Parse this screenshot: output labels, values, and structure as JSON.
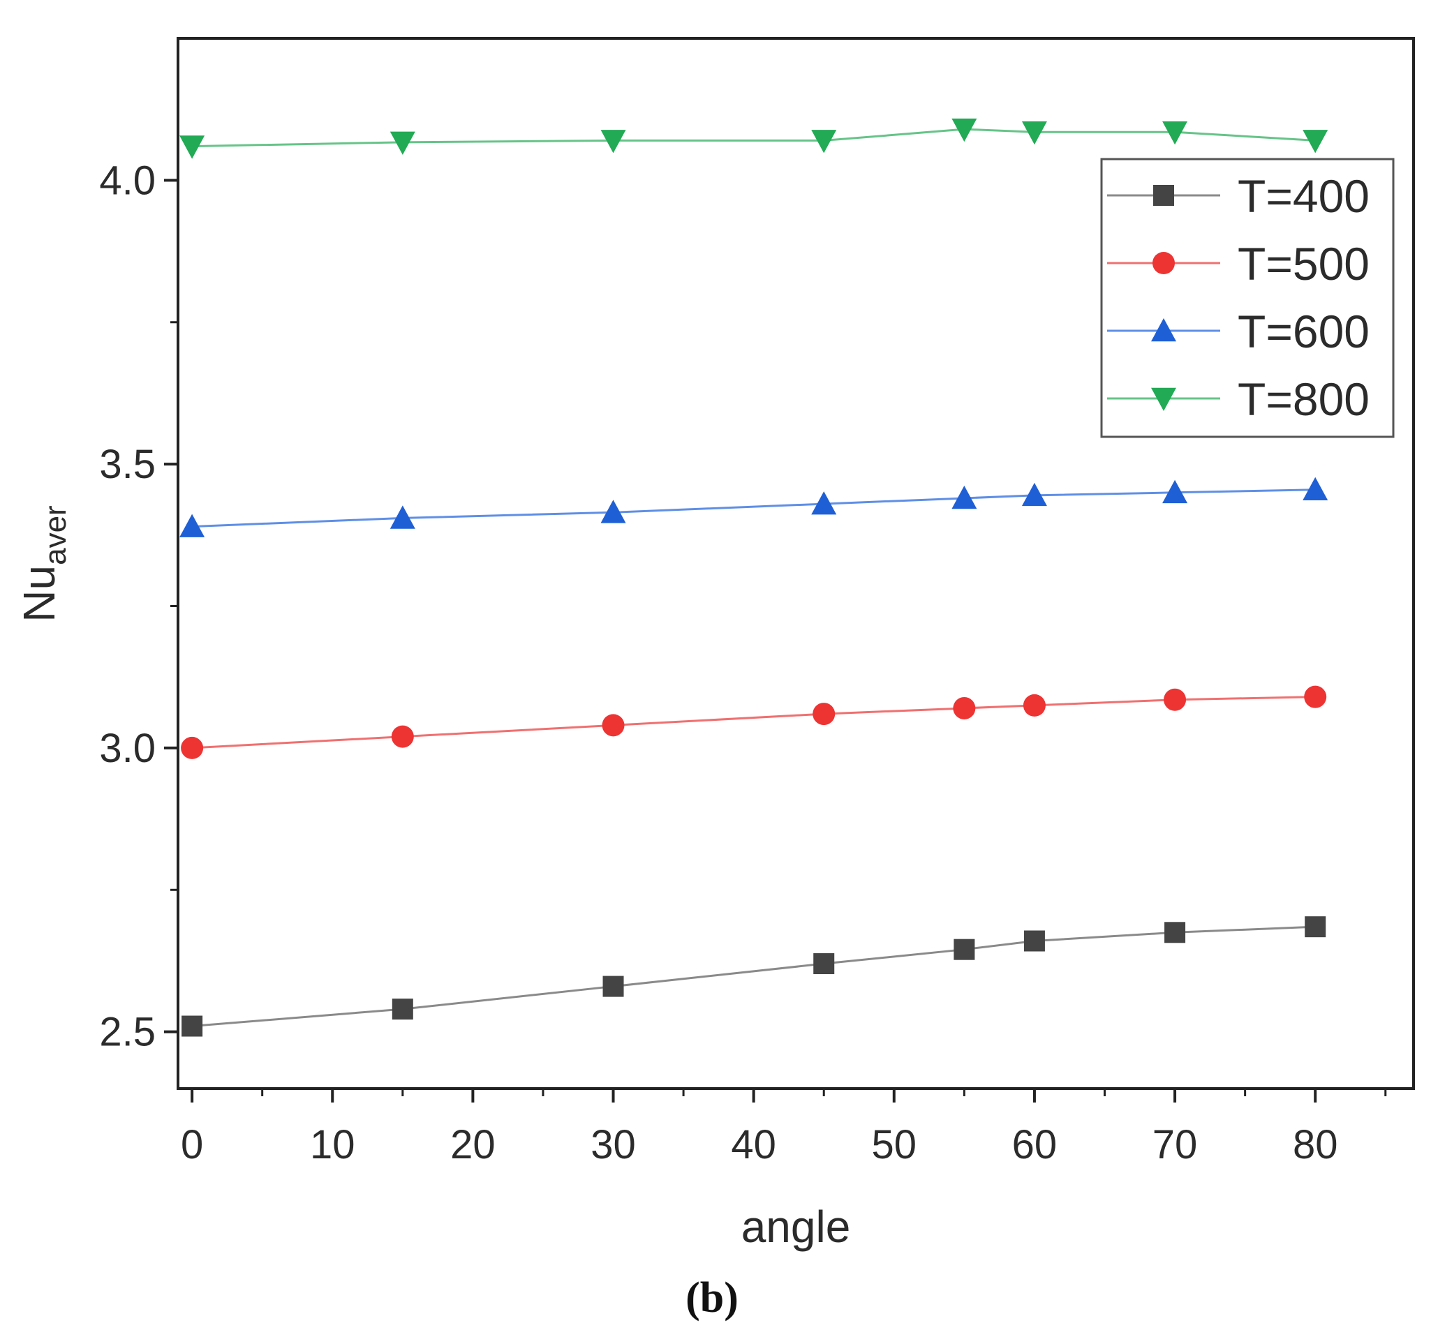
{
  "caption": "(b)",
  "chart_data": {
    "type": "line",
    "title": "",
    "xlabel": "angle",
    "ylabel": {
      "base": "Nu",
      "subscript": "aver"
    },
    "x": [
      0,
      15,
      30,
      45,
      55,
      60,
      70,
      80
    ],
    "xlim": [
      -1,
      87
    ],
    "ylim": [
      2.4,
      4.25
    ],
    "xticks": [
      0,
      10,
      20,
      30,
      40,
      50,
      60,
      70,
      80
    ],
    "xtick_labels": [
      "0",
      "10",
      "20",
      "30",
      "40",
      "50",
      "60",
      "70",
      "80"
    ],
    "yticks": [
      2.5,
      3.0,
      3.5,
      4.0
    ],
    "ytick_labels": [
      "2.5",
      "3.0",
      "3.5",
      "4.0"
    ],
    "grid": false,
    "legend_position": "top-right",
    "series": [
      {
        "name": "T=400",
        "marker": "square",
        "color": "#444444",
        "line_color": "#8a8a8a",
        "values": [
          2.51,
          2.54,
          2.58,
          2.62,
          2.645,
          2.66,
          2.675,
          2.685
        ]
      },
      {
        "name": "T=500",
        "marker": "circle",
        "color": "#ee3333",
        "line_color": "#f07070",
        "values": [
          3.0,
          3.02,
          3.04,
          3.06,
          3.07,
          3.075,
          3.085,
          3.09
        ]
      },
      {
        "name": "T=600",
        "marker": "triangle-up",
        "color": "#1f5fd6",
        "line_color": "#5f8fe6",
        "values": [
          3.39,
          3.405,
          3.415,
          3.43,
          3.44,
          3.445,
          3.45,
          3.455
        ]
      },
      {
        "name": "T=800",
        "marker": "triangle-down",
        "color": "#22aa55",
        "line_color": "#66c488",
        "values": [
          4.06,
          4.067,
          4.07,
          4.07,
          4.09,
          4.085,
          4.085,
          4.07
        ]
      }
    ]
  }
}
